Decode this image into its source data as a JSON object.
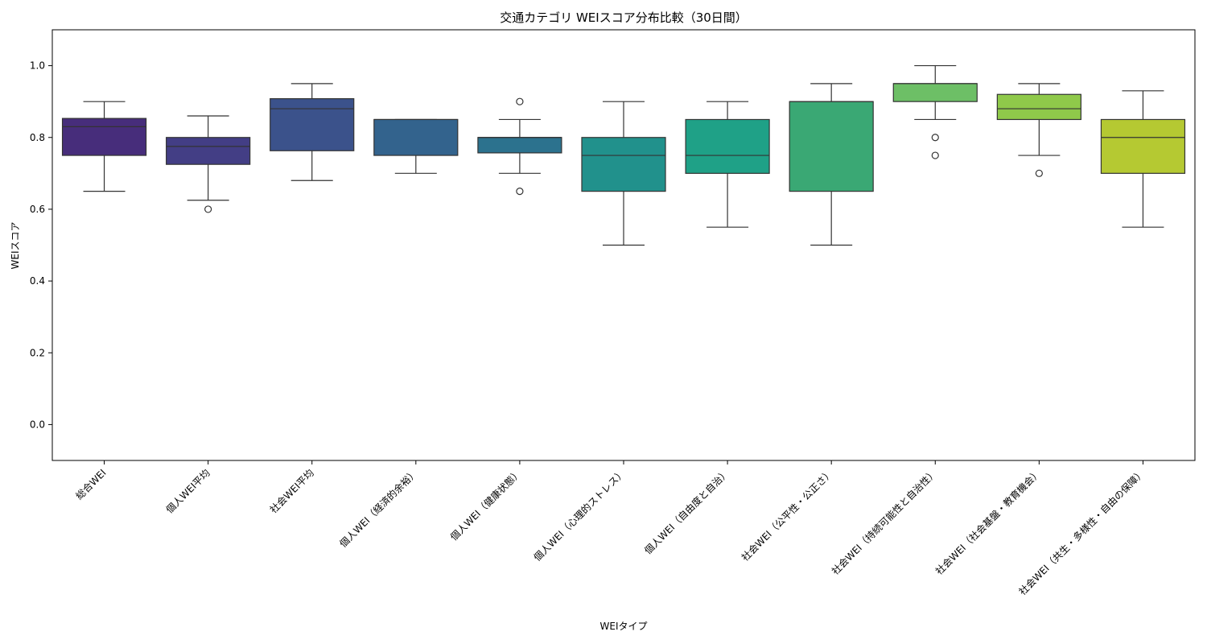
{
  "chart_data": {
    "type": "box",
    "title": "交通カテゴリ WEIスコア分布比較（30日間）",
    "xlabel": "WEIタイプ",
    "ylabel": "WEIスコア",
    "ylim": [
      -0.1,
      1.1
    ],
    "yticks": [
      "0.0",
      "0.2",
      "0.4",
      "0.6",
      "0.8",
      "1.0"
    ],
    "grid": false,
    "legend": "none",
    "categories": [
      "総合WEI",
      "個人WEI平均",
      "社会WEI平均",
      "個人WEI（経済的余裕）",
      "個人WEI（健康状態）",
      "個人WEI（心理的ストレス）",
      "個人WEI（自由度と自治）",
      "社会WEI（公平性・公正さ）",
      "社会WEI（持続可能性と自治性）",
      "社会WEI（社会基盤・教育機会）",
      "社会WEI（共生・多様性・自由の保障）"
    ],
    "boxes": [
      {
        "whisker_low": 0.65,
        "q1": 0.75,
        "median": 0.83,
        "q3": 0.853,
        "whisker_high": 0.9,
        "outliers": [],
        "color": "#472d7b"
      },
      {
        "whisker_low": 0.625,
        "q1": 0.725,
        "median": 0.775,
        "q3": 0.8,
        "whisker_high": 0.86,
        "outliers": [
          0.6
        ],
        "color": "#433e85"
      },
      {
        "whisker_low": 0.68,
        "q1": 0.763,
        "median": 0.88,
        "q3": 0.908,
        "whisker_high": 0.95,
        "outliers": [],
        "color": "#3b528b"
      },
      {
        "whisker_low": 0.7,
        "q1": 0.75,
        "median": 0.85,
        "q3": 0.85,
        "whisker_high": 0.85,
        "outliers": [],
        "color": "#33638d"
      },
      {
        "whisker_low": 0.7,
        "q1": 0.757,
        "median": 0.8,
        "q3": 0.8,
        "whisker_high": 0.85,
        "outliers": [
          0.65,
          0.9
        ],
        "color": "#2c728e"
      },
      {
        "whisker_low": 0.5,
        "q1": 0.65,
        "median": 0.75,
        "q3": 0.8,
        "whisker_high": 0.9,
        "outliers": [],
        "color": "#21918c"
      },
      {
        "whisker_low": 0.55,
        "q1": 0.7,
        "median": 0.75,
        "q3": 0.85,
        "whisker_high": 0.9,
        "outliers": [],
        "color": "#1fa187"
      },
      {
        "whisker_low": 0.5,
        "q1": 0.65,
        "median": 0.9,
        "q3": 0.9,
        "whisker_high": 0.95,
        "outliers": [],
        "color": "#3aa874"
      },
      {
        "whisker_low": 0.85,
        "q1": 0.9,
        "median": 0.95,
        "q3": 0.95,
        "whisker_high": 1.0,
        "outliers": [
          0.8,
          0.75
        ],
        "color": "#6dbf66"
      },
      {
        "whisker_low": 0.75,
        "q1": 0.85,
        "median": 0.88,
        "q3": 0.92,
        "whisker_high": 0.95,
        "outliers": [
          0.7
        ],
        "color": "#8fc94a"
      },
      {
        "whisker_low": 0.55,
        "q1": 0.7,
        "median": 0.8,
        "q3": 0.85,
        "whisker_high": 0.93,
        "outliers": [],
        "color": "#b5c932"
      }
    ]
  }
}
